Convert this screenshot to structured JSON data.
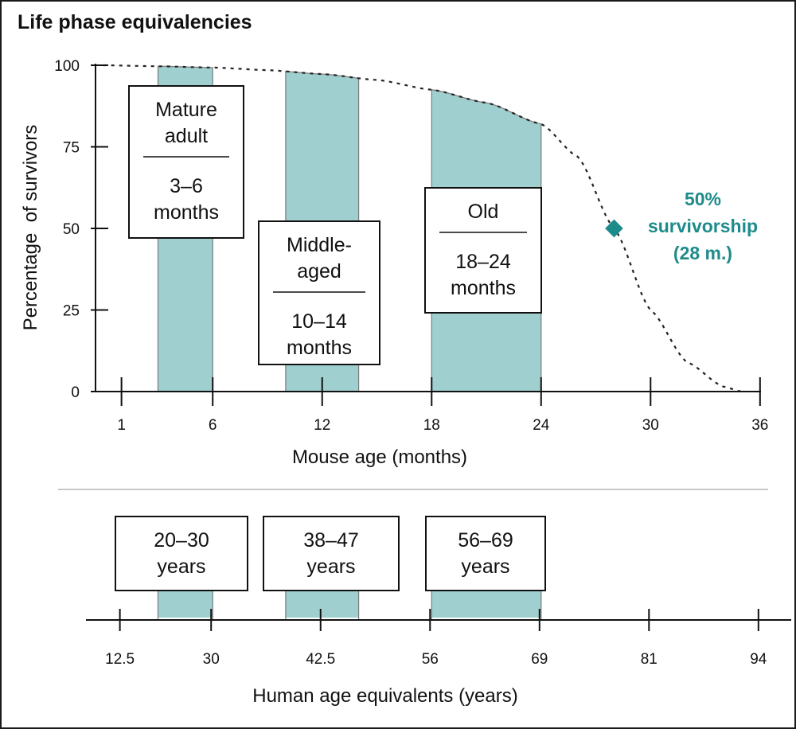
{
  "chart_data": {
    "type": "area",
    "title": "Life phase equivalencies",
    "ylabel": "Percentage  of survivors",
    "xlabel": "Mouse age (months)",
    "secondary_xlabel": "Human age equivalents (years)",
    "ylim": [
      0,
      100
    ],
    "xlim": [
      0,
      37
    ],
    "y_ticks": [
      0,
      25,
      50,
      75,
      100
    ],
    "x_ticks": [
      1,
      6,
      12,
      18,
      24,
      30,
      36
    ],
    "human_ticks": [
      {
        "month": 1,
        "label": "12.5"
      },
      {
        "month": 6,
        "label": "30"
      },
      {
        "month": 12,
        "label": "42.5"
      },
      {
        "month": 18,
        "label": "56"
      },
      {
        "month": 24,
        "label": "69"
      },
      {
        "month": 30,
        "label": "81"
      },
      {
        "month": 36,
        "label": "94"
      }
    ],
    "survival_curve": {
      "x": [
        0,
        3,
        6,
        9,
        12,
        15,
        18,
        21,
        24,
        26,
        28,
        30,
        32,
        34,
        35
      ],
      "y": [
        100,
        99.7,
        99.3,
        98.5,
        97.3,
        95.5,
        92.5,
        88.5,
        82,
        72,
        50,
        25,
        9,
        1.5,
        0
      ]
    },
    "phases": [
      {
        "name": "Mature adult",
        "range": "3–6 months",
        "x0": 3,
        "x1": 6,
        "human": "20–30 years",
        "label_lines": [
          "Mature",
          "adult"
        ],
        "range_lines": [
          "3–6",
          "months"
        ],
        "human_lines": [
          "20–30",
          "years"
        ]
      },
      {
        "name": "Middle-aged",
        "range": "10–14 months",
        "x0": 10,
        "x1": 14,
        "human": "38–47 years",
        "label_lines": [
          "Middle-",
          "aged"
        ],
        "range_lines": [
          "10–14",
          "months"
        ],
        "human_lines": [
          "38–47",
          "years"
        ]
      },
      {
        "name": "Old",
        "range": "18–24 months",
        "x0": 18,
        "x1": 24,
        "human": "56–69 years",
        "label_lines": [
          "Old"
        ],
        "range_lines": [
          "18–24",
          "months"
        ],
        "human_lines": [
          "56–69",
          "years"
        ]
      }
    ],
    "annotation": {
      "x": 28,
      "y": 50,
      "lines": [
        "50%",
        "survivorship",
        "(28 m.)"
      ]
    },
    "colors": {
      "phase_fill": "#9fcfcf",
      "accent": "#1e8b8b",
      "text": "#111111",
      "divider": "#c8c8c8"
    }
  }
}
